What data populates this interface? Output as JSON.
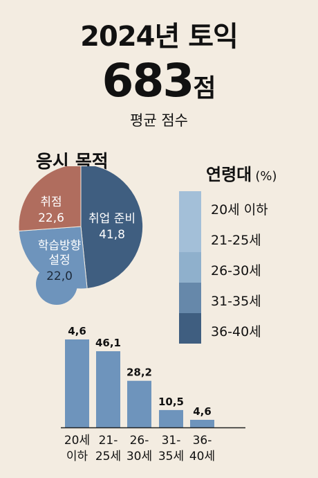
{
  "header": {
    "title": "2024년 토익",
    "score_value": "683",
    "score_unit": "점",
    "score_caption": "평균 점수"
  },
  "purpose": {
    "title": "응시 목적"
  },
  "age": {
    "title": "연령대",
    "unit": "(%)",
    "legend": [
      {
        "label": "20세 이하",
        "color": "#a3bfd8"
      },
      {
        "label": "21-25세",
        "color": "#a3bfd8"
      },
      {
        "label": "26-30세",
        "color": "#8fb0cc"
      },
      {
        "label": "31-35세",
        "color": "#6688aa"
      },
      {
        "label": "36-40세",
        "color": "#3f5e80"
      }
    ]
  },
  "chart_data": [
    {
      "type": "pie",
      "title": "응시 목적",
      "slices": [
        {
          "label": "취업 준비",
          "value": 41.8,
          "display": "41,8",
          "color": "#3f5e80"
        },
        {
          "label": "학습방향 설정",
          "value": 22.0,
          "display": "22,0",
          "color": "#6e94bc"
        },
        {
          "label": "취점",
          "value": 22.6,
          "display": "22,6",
          "color": "#b06d5e"
        }
      ]
    },
    {
      "type": "bar",
      "title": "연령대",
      "unit": "(%)",
      "categories": [
        "20세 이하",
        "21-25세",
        "26-30세",
        "31-35세",
        "36-40세"
      ],
      "category_lines": [
        [
          "20세",
          "이하"
        ],
        [
          "21-",
          "25세"
        ],
        [
          "26-",
          "30세"
        ],
        [
          "31-",
          "35세"
        ],
        [
          "36-",
          "40세"
        ]
      ],
      "values": [
        4.6,
        46.1,
        28.2,
        10.5,
        4.6
      ],
      "value_labels": [
        "4,6",
        "46,1",
        "28,2",
        "10,5",
        "4,6"
      ],
      "bar_color": "#6e94bc",
      "ylim": [
        0,
        50
      ]
    }
  ]
}
